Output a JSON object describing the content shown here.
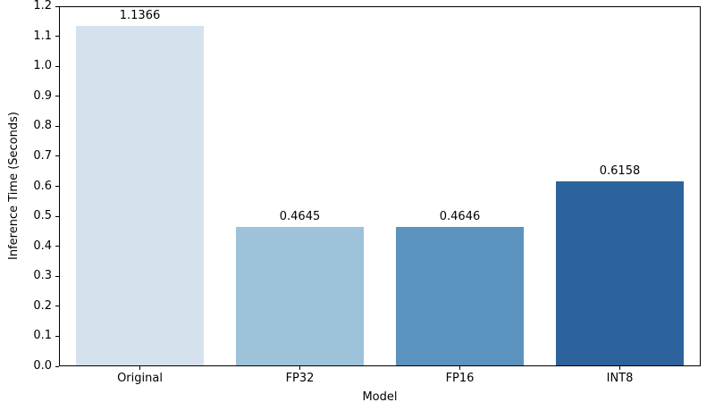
{
  "chart_data": {
    "type": "bar",
    "title": "",
    "xlabel": "Model",
    "ylabel": "Inference Time (Seconds)",
    "categories": [
      "Original",
      "FP32",
      "FP16",
      "INT8"
    ],
    "values": [
      1.1366,
      0.4645,
      0.4646,
      0.6158
    ],
    "value_labels": [
      "1.1366",
      "0.4645",
      "0.4646",
      "0.6158"
    ],
    "bar_colors": [
      "#d5e2ee",
      "#9dc2da",
      "#5b93be",
      "#2c639d"
    ],
    "ylim": [
      0,
      1.2
    ],
    "ytick_step": 0.1,
    "ytick_labels": [
      "0.0",
      "0.1",
      "0.2",
      "0.3",
      "0.4",
      "0.5",
      "0.6",
      "0.7",
      "0.8",
      "0.9",
      "1.0",
      "1.1",
      "1.2"
    ],
    "grid": false,
    "legend": null,
    "bar_width_fraction": 0.8,
    "spine_color": "#000000",
    "text_color": "#000000",
    "background_color": "#ffffff"
  }
}
